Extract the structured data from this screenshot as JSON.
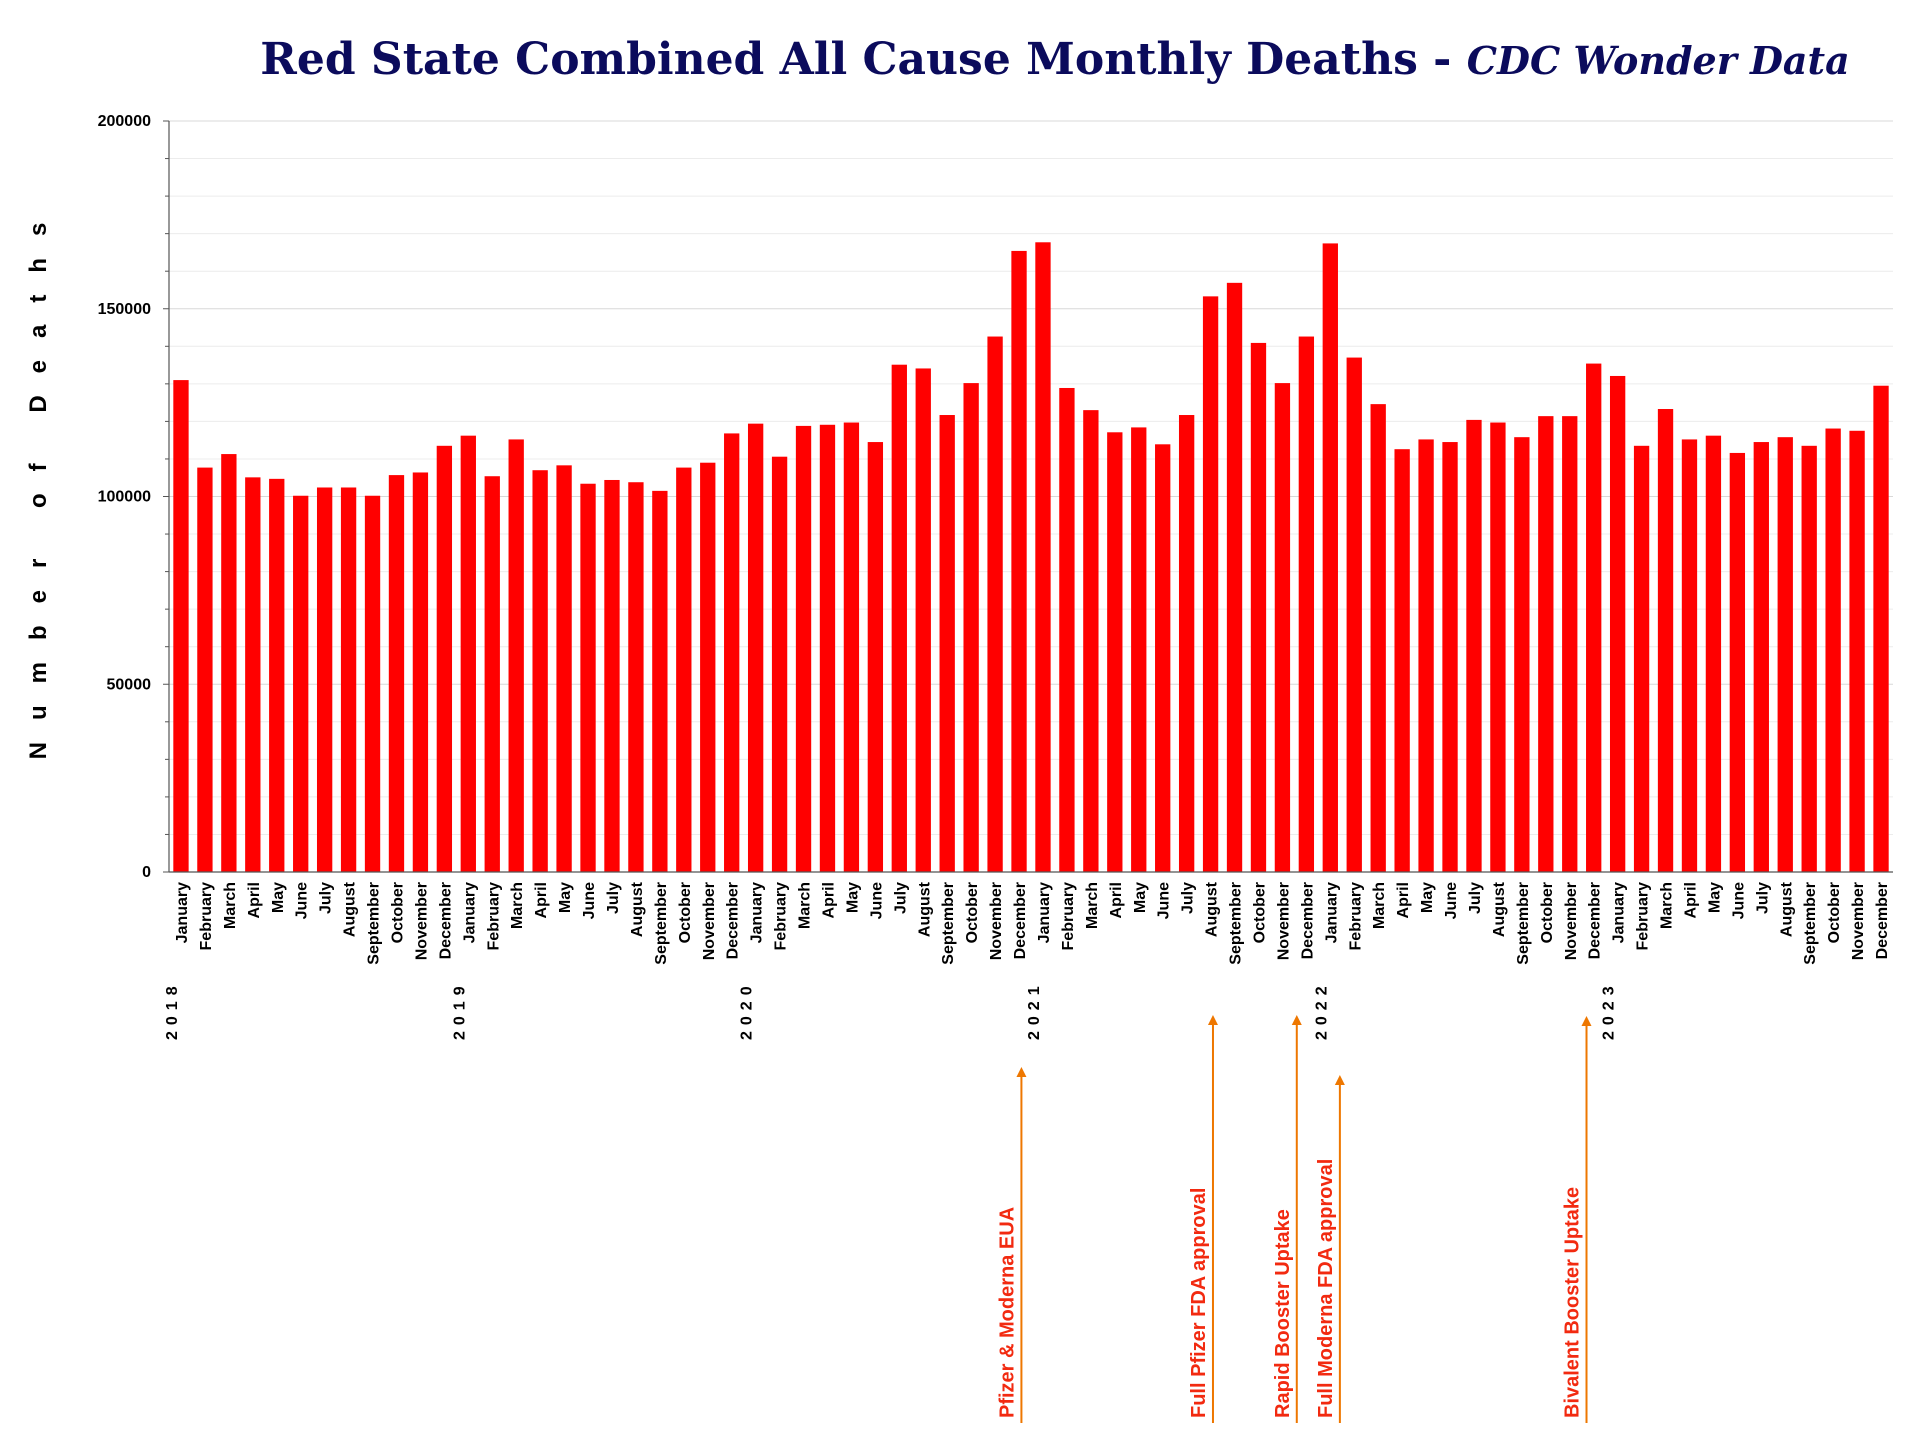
{
  "chart_data": {
    "type": "bar",
    "title": "Red State Combined All Cause Monthly Deaths - ",
    "title_italic": "CDC Wonder Data",
    "ylabel": "Number of Deaths",
    "xlabel": "",
    "ylim": [
      0,
      200000
    ],
    "yticks": [
      "0",
      "50000",
      "100000",
      "150000",
      "200000"
    ],
    "grid": true,
    "bar_color": "#ff0000",
    "annotation_color": "#f22a10",
    "arrow_color": "#ee7700",
    "years": [
      "2018",
      "2019",
      "2020",
      "2021",
      "2022",
      "2023"
    ],
    "months": [
      "January",
      "February",
      "March",
      "April",
      "May",
      "June",
      "July",
      "August",
      "September",
      "October",
      "November",
      "December"
    ],
    "values": [
      131000,
      107700,
      111300,
      105100,
      104700,
      100200,
      102400,
      102400,
      100200,
      105700,
      106400,
      113500,
      116200,
      105400,
      115200,
      107000,
      108300,
      103400,
      104400,
      103800,
      101500,
      107700,
      109000,
      116800,
      119400,
      110600,
      118800,
      119100,
      119700,
      114500,
      135100,
      134100,
      121700,
      130200,
      142600,
      165400,
      167700,
      128900,
      123000,
      117100,
      118400,
      113900,
      121700,
      153300,
      156900,
      140900,
      130200,
      142600,
      167400,
      137000,
      124600,
      112600,
      115200,
      114500,
      120400,
      119700,
      115800,
      121400,
      121400,
      135400,
      132100,
      113500,
      123300,
      115200,
      116200,
      111600,
      114500,
      115800,
      113500,
      118100,
      117500,
      129500
    ],
    "annotations": [
      {
        "text": "Pfizer & Moderna EUA",
        "at_month_index": 35.6
      },
      {
        "text": "Full Pfizer FDA approval",
        "at_month_index": 43.6
      },
      {
        "text": "Rapid Booster Uptake",
        "at_month_index": 47.1
      },
      {
        "text": "Full Moderna FDA approval",
        "at_month_index": 48.9
      },
      {
        "text": "Bivalent Booster Uptake",
        "at_month_index": 59.2
      }
    ]
  }
}
